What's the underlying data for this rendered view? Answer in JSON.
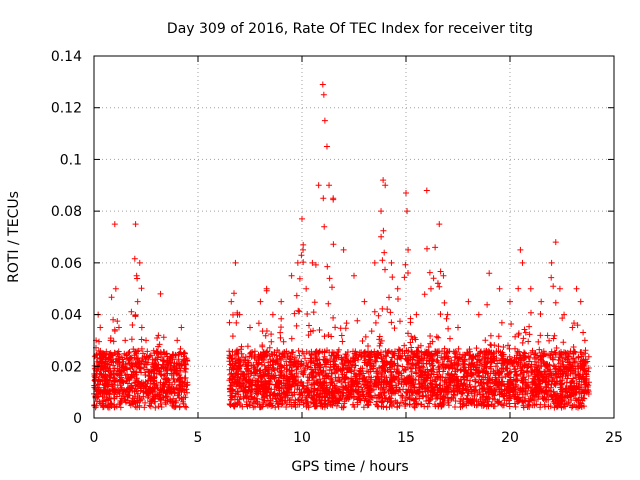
{
  "chart_data": {
    "type": "scatter",
    "title": "Day 309 of 2016, Rate Of TEC Index for receiver titg",
    "xlabel": "GPS time / hours",
    "ylabel": "ROTI / TECUs",
    "xlim": [
      0,
      25
    ],
    "ylim": [
      0,
      0.14
    ],
    "x_ticks": [
      0,
      5,
      10,
      15,
      20,
      25
    ],
    "y_ticks": [
      0,
      0.02,
      0.04,
      0.06,
      0.08,
      0.1,
      0.12,
      0.14
    ],
    "x_tick_labels": [
      "0",
      "5",
      "10",
      "15",
      "20",
      "25"
    ],
    "y_tick_labels": [
      "0",
      "0.02",
      "0.04",
      "0.06",
      "0.08",
      "0.1",
      "0.12",
      "0.14"
    ],
    "grid": true,
    "marker": "+",
    "color": "#ff0000",
    "gap_hours": [
      4.5,
      6.5
    ],
    "series": [
      {
        "name": "ROTI",
        "x": [
          0.1,
          0.2,
          0.3,
          0.4,
          0.5,
          0.8,
          1.0,
          1.05,
          1.2,
          1.5,
          2.0,
          2.05,
          2.1,
          2.2,
          2.3,
          2.5,
          3.0,
          3.2,
          3.5,
          4.0,
          4.2,
          4.3,
          6.6,
          6.8,
          7.0,
          7.5,
          8.0,
          8.3,
          8.6,
          9.0,
          9.5,
          9.8,
          10.0,
          10.05,
          10.2,
          10.5,
          10.8,
          11.0,
          11.05,
          11.1,
          11.2,
          11.3,
          11.5,
          12.0,
          12.5,
          13.0,
          13.5,
          13.8,
          13.9,
          14.0,
          14.3,
          14.6,
          15.0,
          15.05,
          15.1,
          15.5,
          16.0,
          16.2,
          16.4,
          16.6,
          16.8,
          17.0,
          17.5,
          18.0,
          18.5,
          19.0,
          19.5,
          20.0,
          20.5,
          20.6,
          21.0,
          21.5,
          22.0,
          22.2,
          22.4,
          22.6,
          23.0,
          23.2,
          23.4,
          23.6
        ],
        "y": [
          0.03,
          0.04,
          0.035,
          0.025,
          0.02,
          0.03,
          0.075,
          0.05,
          0.035,
          0.03,
          0.075,
          0.055,
          0.045,
          0.06,
          0.035,
          0.03,
          0.025,
          0.048,
          0.025,
          0.03,
          0.035,
          0.025,
          0.045,
          0.06,
          0.04,
          0.035,
          0.045,
          0.05,
          0.04,
          0.045,
          0.055,
          0.06,
          0.077,
          0.065,
          0.05,
          0.06,
          0.09,
          0.129,
          0.125,
          0.115,
          0.105,
          0.09,
          0.085,
          0.065,
          0.055,
          0.045,
          0.06,
          0.08,
          0.092,
          0.09,
          0.06,
          0.05,
          0.087,
          0.08,
          0.065,
          0.04,
          0.088,
          0.05,
          0.066,
          0.075,
          0.055,
          0.04,
          0.035,
          0.045,
          0.04,
          0.056,
          0.05,
          0.045,
          0.065,
          0.06,
          0.05,
          0.045,
          0.06,
          0.068,
          0.05,
          0.04,
          0.035,
          0.05,
          0.045,
          0.03
        ]
      }
    ]
  }
}
